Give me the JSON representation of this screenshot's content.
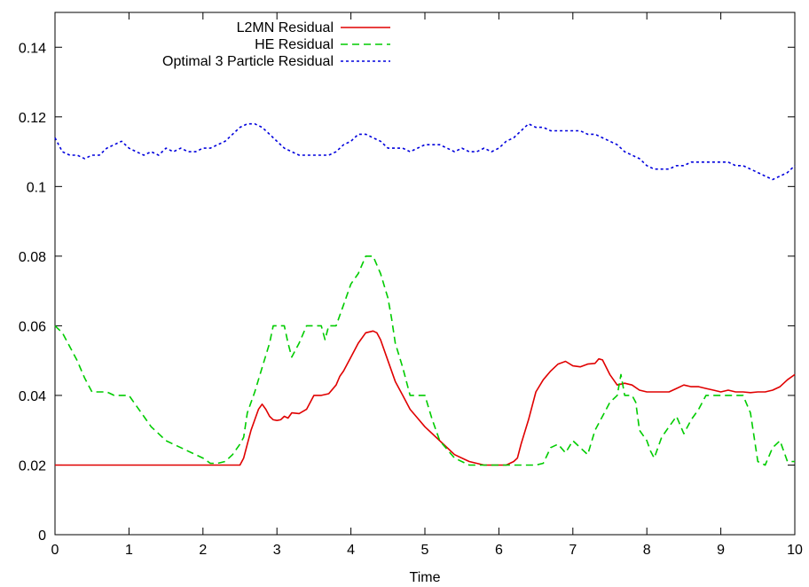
{
  "chart_data": {
    "type": "line",
    "title": "",
    "xlabel": "Time",
    "ylabel": "",
    "xlim": [
      0,
      10
    ],
    "ylim": [
      0,
      0.15
    ],
    "xticks": [
      0,
      1,
      2,
      3,
      4,
      5,
      6,
      7,
      8,
      9,
      10
    ],
    "xtick_labels": [
      "0",
      "1",
      "2",
      "3",
      "4",
      "5",
      "6",
      "7",
      "8",
      "9",
      "10"
    ],
    "yticks": [
      0,
      0.02,
      0.04,
      0.06,
      0.08,
      0.1,
      0.12,
      0.14
    ],
    "ytick_labels": [
      "0",
      "0.02",
      "0.04",
      "0.06",
      "0.08",
      "0.1",
      "0.12",
      "0.14"
    ],
    "grid": false,
    "legend_position": "top-center",
    "series": [
      {
        "name": "L2MN Residual",
        "color": "#e00000",
        "dash": "solid",
        "x": [
          0,
          2.5,
          2.55,
          2.6,
          2.65,
          2.7,
          2.75,
          2.8,
          2.85,
          2.9,
          2.95,
          3.0,
          3.05,
          3.1,
          3.15,
          3.2,
          3.3,
          3.4,
          3.5,
          3.6,
          3.7,
          3.8,
          3.85,
          3.9,
          4.0,
          4.1,
          4.2,
          4.3,
          4.35,
          4.4,
          4.5,
          4.6,
          4.7,
          4.8,
          4.9,
          5.0,
          5.2,
          5.4,
          5.6,
          5.8,
          6.0,
          6.1,
          6.2,
          6.25,
          6.3,
          6.4,
          6.5,
          6.6,
          6.7,
          6.8,
          6.9,
          7.0,
          7.1,
          7.2,
          7.3,
          7.35,
          7.4,
          7.5,
          7.6,
          7.7,
          7.8,
          7.9,
          8.0,
          8.1,
          8.2,
          8.3,
          8.4,
          8.5,
          8.6,
          8.7,
          8.8,
          8.9,
          9.0,
          9.1,
          9.2,
          9.3,
          9.4,
          9.5,
          9.6,
          9.7,
          9.8,
          9.9,
          10.0
        ],
        "y": [
          0.02,
          0.02,
          0.022,
          0.026,
          0.03,
          0.033,
          0.036,
          0.0375,
          0.036,
          0.034,
          0.033,
          0.0328,
          0.033,
          0.034,
          0.0335,
          0.035,
          0.0348,
          0.036,
          0.04,
          0.04,
          0.0405,
          0.043,
          0.0455,
          0.047,
          0.051,
          0.055,
          0.058,
          0.0585,
          0.058,
          0.056,
          0.05,
          0.044,
          0.04,
          0.036,
          0.0335,
          0.031,
          0.027,
          0.023,
          0.021,
          0.02,
          0.02,
          0.02,
          0.021,
          0.022,
          0.026,
          0.033,
          0.041,
          0.0445,
          0.047,
          0.049,
          0.0498,
          0.0485,
          0.0482,
          0.049,
          0.0492,
          0.0505,
          0.0502,
          0.046,
          0.043,
          0.0435,
          0.043,
          0.0415,
          0.041,
          0.041,
          0.041,
          0.041,
          0.042,
          0.043,
          0.0425,
          0.0425,
          0.042,
          0.0415,
          0.041,
          0.0415,
          0.041,
          0.041,
          0.0408,
          0.041,
          0.041,
          0.0415,
          0.0425,
          0.0445,
          0.046
        ]
      },
      {
        "name": "HE Residual",
        "color": "#00cc00",
        "dash": "8 5",
        "x": [
          0,
          0.1,
          0.2,
          0.3,
          0.4,
          0.5,
          0.6,
          0.7,
          0.8,
          0.9,
          1.0,
          1.1,
          1.2,
          1.3,
          1.4,
          1.5,
          1.6,
          1.7,
          1.8,
          1.9,
          2.0,
          2.1,
          2.2,
          2.3,
          2.4,
          2.5,
          2.55,
          2.6,
          2.7,
          2.8,
          2.9,
          2.95,
          3.0,
          3.1,
          3.15,
          3.2,
          3.3,
          3.4,
          3.5,
          3.6,
          3.65,
          3.7,
          3.8,
          3.9,
          4.0,
          4.1,
          4.2,
          4.3,
          4.4,
          4.5,
          4.55,
          4.6,
          4.7,
          4.8,
          4.9,
          5.0,
          5.1,
          5.2,
          5.4,
          5.6,
          5.8,
          6.0,
          6.2,
          6.4,
          6.5,
          6.6,
          6.7,
          6.8,
          6.9,
          7.0,
          7.1,
          7.2,
          7.3,
          7.4,
          7.5,
          7.6,
          7.65,
          7.7,
          7.8,
          7.85,
          7.9,
          8.0,
          8.05,
          8.1,
          8.2,
          8.3,
          8.4,
          8.5,
          8.6,
          8.7,
          8.8,
          8.9,
          9.0,
          9.1,
          9.2,
          9.3,
          9.4,
          9.5,
          9.6,
          9.7,
          9.8,
          9.9,
          10.0
        ],
        "y": [
          0.06,
          0.058,
          0.054,
          0.05,
          0.045,
          0.041,
          0.041,
          0.041,
          0.04,
          0.04,
          0.04,
          0.037,
          0.034,
          0.031,
          0.029,
          0.027,
          0.026,
          0.025,
          0.024,
          0.023,
          0.022,
          0.0205,
          0.0205,
          0.021,
          0.023,
          0.026,
          0.028,
          0.035,
          0.041,
          0.048,
          0.055,
          0.06,
          0.06,
          0.06,
          0.055,
          0.051,
          0.055,
          0.06,
          0.06,
          0.06,
          0.056,
          0.06,
          0.06,
          0.066,
          0.072,
          0.075,
          0.08,
          0.08,
          0.075,
          0.068,
          0.062,
          0.055,
          0.048,
          0.04,
          0.04,
          0.04,
          0.033,
          0.027,
          0.022,
          0.02,
          0.02,
          0.02,
          0.02,
          0.02,
          0.02,
          0.0205,
          0.025,
          0.026,
          0.0235,
          0.027,
          0.025,
          0.023,
          0.03,
          0.034,
          0.038,
          0.04,
          0.046,
          0.04,
          0.04,
          0.038,
          0.03,
          0.027,
          0.024,
          0.022,
          0.028,
          0.031,
          0.034,
          0.029,
          0.033,
          0.036,
          0.04,
          0.04,
          0.04,
          0.04,
          0.04,
          0.04,
          0.035,
          0.021,
          0.02,
          0.025,
          0.027,
          0.021,
          0.021
        ]
      },
      {
        "name": "Optimal 3 Particle Residual",
        "color": "#0000dd",
        "dash": "3 3",
        "x": [
          0,
          0.1,
          0.2,
          0.3,
          0.4,
          0.5,
          0.6,
          0.7,
          0.8,
          0.9,
          1.0,
          1.1,
          1.2,
          1.3,
          1.4,
          1.5,
          1.6,
          1.7,
          1.8,
          1.9,
          2.0,
          2.1,
          2.2,
          2.3,
          2.4,
          2.5,
          2.6,
          2.7,
          2.8,
          2.9,
          3.0,
          3.1,
          3.2,
          3.3,
          3.4,
          3.5,
          3.6,
          3.7,
          3.8,
          3.9,
          4.0,
          4.1,
          4.2,
          4.3,
          4.4,
          4.5,
          4.6,
          4.7,
          4.8,
          4.9,
          5.0,
          5.1,
          5.2,
          5.3,
          5.4,
          5.5,
          5.6,
          5.7,
          5.8,
          5.9,
          6.0,
          6.1,
          6.2,
          6.3,
          6.4,
          6.5,
          6.6,
          6.7,
          6.8,
          6.9,
          7.0,
          7.1,
          7.2,
          7.3,
          7.4,
          7.5,
          7.6,
          7.7,
          7.8,
          7.9,
          8.0,
          8.1,
          8.2,
          8.3,
          8.4,
          8.5,
          8.6,
          8.7,
          8.8,
          8.9,
          9.0,
          9.1,
          9.2,
          9.3,
          9.4,
          9.5,
          9.6,
          9.7,
          9.8,
          9.9,
          10.0
        ],
        "y": [
          0.114,
          0.11,
          0.109,
          0.109,
          0.108,
          0.109,
          0.109,
          0.111,
          0.112,
          0.113,
          0.111,
          0.11,
          0.109,
          0.11,
          0.109,
          0.111,
          0.11,
          0.111,
          0.11,
          0.11,
          0.111,
          0.111,
          0.112,
          0.113,
          0.115,
          0.117,
          0.118,
          0.118,
          0.117,
          0.115,
          0.113,
          0.111,
          0.11,
          0.109,
          0.109,
          0.109,
          0.109,
          0.109,
          0.11,
          0.112,
          0.113,
          0.115,
          0.115,
          0.114,
          0.113,
          0.111,
          0.111,
          0.111,
          0.11,
          0.111,
          0.112,
          0.112,
          0.112,
          0.111,
          0.11,
          0.111,
          0.11,
          0.11,
          0.111,
          0.11,
          0.111,
          0.113,
          0.114,
          0.116,
          0.118,
          0.117,
          0.117,
          0.116,
          0.116,
          0.116,
          0.116,
          0.116,
          0.115,
          0.115,
          0.114,
          0.113,
          0.112,
          0.11,
          0.109,
          0.108,
          0.106,
          0.105,
          0.105,
          0.105,
          0.106,
          0.106,
          0.107,
          0.107,
          0.107,
          0.107,
          0.107,
          0.107,
          0.106,
          0.106,
          0.105,
          0.104,
          0.103,
          0.102,
          0.103,
          0.104,
          0.106
        ]
      }
    ]
  }
}
